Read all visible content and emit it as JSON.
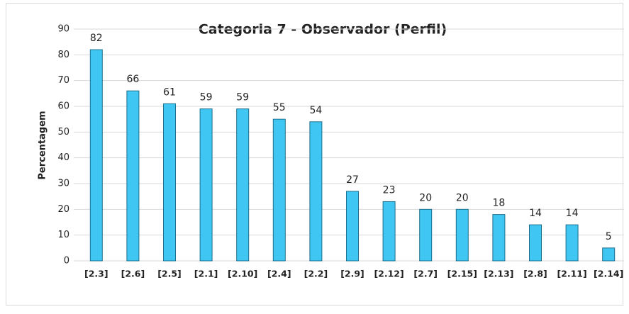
{
  "chart_data": {
    "type": "bar",
    "title": "Categoria 7 - Observador (Perfil)",
    "ylabel": "Percentagem",
    "categories": [
      "[2.3]",
      "[2.6]",
      "[2.5]",
      "[2.1]",
      "[2.10]",
      "[2.4]",
      "[2.2]",
      "[2.9]",
      "[2.12]",
      "[2.7]",
      "[2.15]",
      "[2.13]",
      "[2.8]",
      "[2.11]",
      "[2.14]"
    ],
    "values": [
      82,
      66,
      61,
      59,
      59,
      55,
      54,
      27,
      23,
      20,
      20,
      18,
      14,
      14,
      5
    ],
    "color": "#3fc6f2",
    "ylim": [
      0,
      90
    ],
    "yticks": [
      0,
      10,
      20,
      30,
      40,
      50,
      60,
      70,
      80,
      90
    ],
    "grid": true
  }
}
